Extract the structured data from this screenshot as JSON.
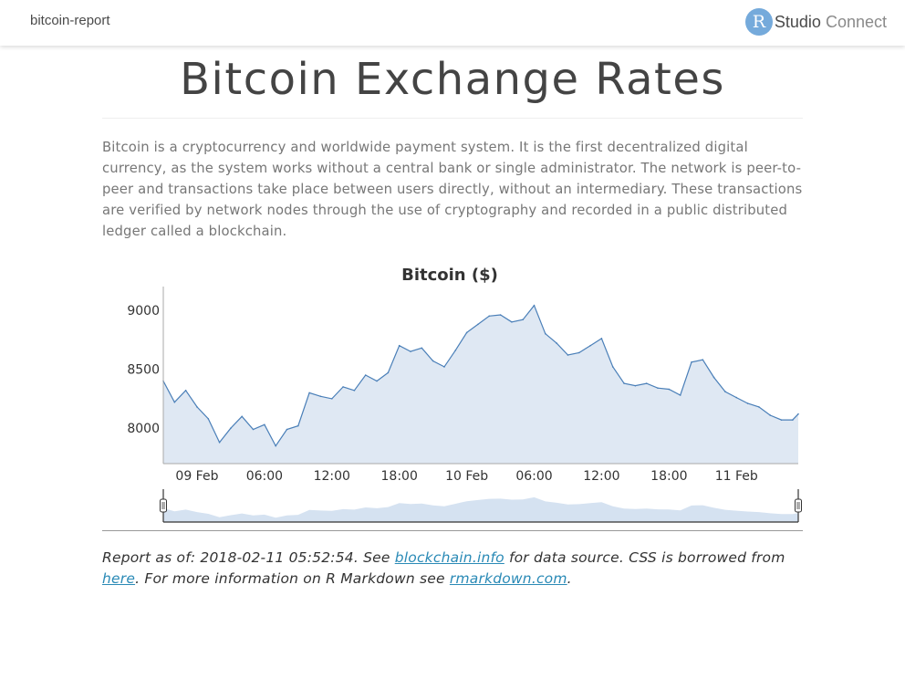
{
  "header": {
    "doc_name": "bitcoin-report",
    "brand_letter": "R",
    "brand_studio": "Studio",
    "brand_connect": "Connect"
  },
  "page": {
    "title": "Bitcoin Exchange Rates",
    "intro": "Bitcoin is a cryptocurrency and worldwide payment system. It is the first decentralized digital currency, as the system works without a central bank or single administrator. The network is peer-to-peer and transactions take place between users directly, without an intermediary. These transactions are verified by network nodes through the use of cryptography and recorded in a public distributed ledger called a blockchain."
  },
  "footer": {
    "part1": "Report as of: 2018-02-11 05:52:54. See ",
    "link1": "blockchain.info",
    "part2": " for data source. CSS is borrowed from ",
    "link2": "here",
    "part3": ". For more information on R Markdown see ",
    "link3": "rmarkdown.com",
    "part4": "."
  },
  "colors": {
    "line": "#4a7fb8",
    "area": "#dfe8f3",
    "navigator_area": "#d5e2f1"
  },
  "chart_data": {
    "type": "area",
    "title": "Bitcoin ($)",
    "xlabel": "",
    "ylabel": "",
    "xlim": [
      "2018-02-08 21:00",
      "2018-02-11 05:30"
    ],
    "ylim": [
      7700,
      9200
    ],
    "yticks": [
      8000,
      8500,
      9000
    ],
    "xticks": [
      {
        "x": "2018-02-09 00:00",
        "label": "09 Feb"
      },
      {
        "x": "2018-02-09 06:00",
        "label": "06:00"
      },
      {
        "x": "2018-02-09 12:00",
        "label": "12:00"
      },
      {
        "x": "2018-02-09 18:00",
        "label": "18:00"
      },
      {
        "x": "2018-02-10 00:00",
        "label": "10 Feb"
      },
      {
        "x": "2018-02-10 06:00",
        "label": "06:00"
      },
      {
        "x": "2018-02-10 12:00",
        "label": "12:00"
      },
      {
        "x": "2018-02-10 18:00",
        "label": "18:00"
      },
      {
        "x": "2018-02-11 00:00",
        "label": "11 Feb"
      }
    ],
    "grid": false,
    "legend": "none",
    "navigator": true,
    "series": [
      {
        "x": [
          "2018-02-08 21:00",
          "2018-02-08 22:00",
          "2018-02-08 23:00",
          "2018-02-09 00:00",
          "2018-02-09 01:00",
          "2018-02-09 02:00",
          "2018-02-09 03:00",
          "2018-02-09 04:00",
          "2018-02-09 05:00",
          "2018-02-09 06:00",
          "2018-02-09 07:00",
          "2018-02-09 08:00",
          "2018-02-09 09:00",
          "2018-02-09 10:00",
          "2018-02-09 11:00",
          "2018-02-09 12:00",
          "2018-02-09 13:00",
          "2018-02-09 14:00",
          "2018-02-09 15:00",
          "2018-02-09 16:00",
          "2018-02-09 17:00",
          "2018-02-09 18:00",
          "2018-02-09 19:00",
          "2018-02-09 20:00",
          "2018-02-09 21:00",
          "2018-02-09 22:00",
          "2018-02-09 23:00",
          "2018-02-10 00:00",
          "2018-02-10 01:00",
          "2018-02-10 02:00",
          "2018-02-10 03:00",
          "2018-02-10 04:00",
          "2018-02-10 05:00",
          "2018-02-10 06:00",
          "2018-02-10 07:00",
          "2018-02-10 08:00",
          "2018-02-10 09:00",
          "2018-02-10 10:00",
          "2018-02-10 11:00",
          "2018-02-10 12:00",
          "2018-02-10 13:00",
          "2018-02-10 14:00",
          "2018-02-10 15:00",
          "2018-02-10 16:00",
          "2018-02-10 17:00",
          "2018-02-10 18:00",
          "2018-02-10 19:00",
          "2018-02-10 20:00",
          "2018-02-10 21:00",
          "2018-02-10 22:00",
          "2018-02-10 23:00",
          "2018-02-11 00:00",
          "2018-02-11 01:00",
          "2018-02-11 02:00",
          "2018-02-11 03:00",
          "2018-02-11 04:00",
          "2018-02-11 05:00",
          "2018-02-11 05:30"
        ],
        "values": [
          8400,
          8220,
          8320,
          8180,
          8080,
          7880,
          8000,
          8100,
          7990,
          8030,
          7850,
          7990,
          8020,
          8300,
          8270,
          8250,
          8350,
          8320,
          8450,
          8400,
          8470,
          8700,
          8650,
          8680,
          8570,
          8520,
          8660,
          8810,
          8880,
          8950,
          8960,
          8900,
          8920,
          9040,
          8800,
          8720,
          8620,
          8640,
          8700,
          8760,
          8520,
          8380,
          8360,
          8380,
          8340,
          8330,
          8280,
          8560,
          8580,
          8430,
          8310,
          8260,
          8210,
          8180,
          8110,
          8070,
          8070,
          8120
        ]
      }
    ]
  }
}
